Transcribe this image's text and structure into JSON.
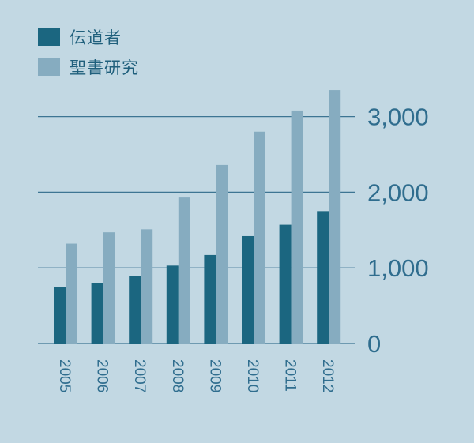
{
  "colors": {
    "background": "#c2d8e3",
    "grid": "#3d7593",
    "text": "#2f6d8e"
  },
  "chart_data": {
    "type": "bar",
    "categories": [
      "2005",
      "2006",
      "2007",
      "2008",
      "2009",
      "2010",
      "2011",
      "2012"
    ],
    "series": [
      {
        "name": "伝道者",
        "color": "#1b6680",
        "values": [
          750,
          800,
          890,
          1030,
          1170,
          1420,
          1570,
          1750
        ]
      },
      {
        "name": "聖書研究",
        "color": "#86acc0",
        "values": [
          1320,
          1470,
          1510,
          1930,
          2360,
          2800,
          3080,
          3350
        ]
      }
    ],
    "yticks": [
      0,
      1000,
      2000,
      3000
    ],
    "ytick_labels": [
      "0",
      "1,000",
      "2,000",
      "3,000"
    ],
    "ylim": [
      0,
      3400
    ],
    "grid": true,
    "legend_position": "top-left",
    "y_axis_position": "right"
  }
}
